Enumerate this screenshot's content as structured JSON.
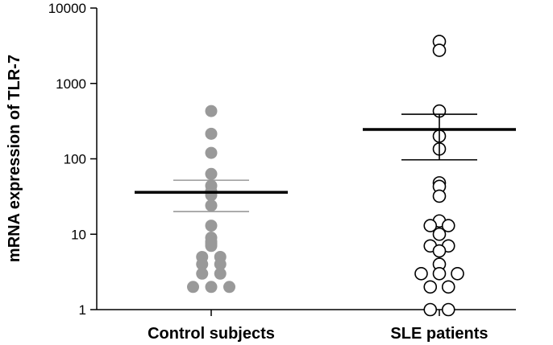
{
  "chart_data": {
    "type": "scatter",
    "ylabel": "mRNA expression of TLR-7",
    "yscale": "log",
    "ylim": [
      1,
      10000
    ],
    "yticks": [
      1,
      10,
      100,
      1000,
      10000
    ],
    "ytick_labels": [
      "1",
      "10",
      "100",
      "1000",
      "10000"
    ],
    "categories": [
      "Control subjects",
      "SLE patients"
    ],
    "grid": false,
    "legend": "none",
    "series": [
      {
        "category": "Control subjects",
        "marker": "filled",
        "color": "#999999",
        "values": [
          430,
          215,
          120,
          63,
          44,
          37,
          33,
          24,
          13,
          9,
          8,
          7,
          7.5,
          5,
          5,
          4,
          4,
          3,
          3,
          2,
          2,
          2
        ],
        "mean": 36,
        "sem_upper": 52,
        "sem_lower": 20
      },
      {
        "category": "SLE patients",
        "marker": "open",
        "color": "#000000",
        "values": [
          3600,
          2750,
          430,
          200,
          135,
          48,
          43,
          32,
          15,
          13,
          13,
          10,
          7,
          7,
          6,
          4,
          3,
          3,
          3,
          2,
          2,
          1,
          1
        ],
        "mean": 245,
        "sem_upper": 390,
        "sem_lower": 97
      }
    ]
  }
}
